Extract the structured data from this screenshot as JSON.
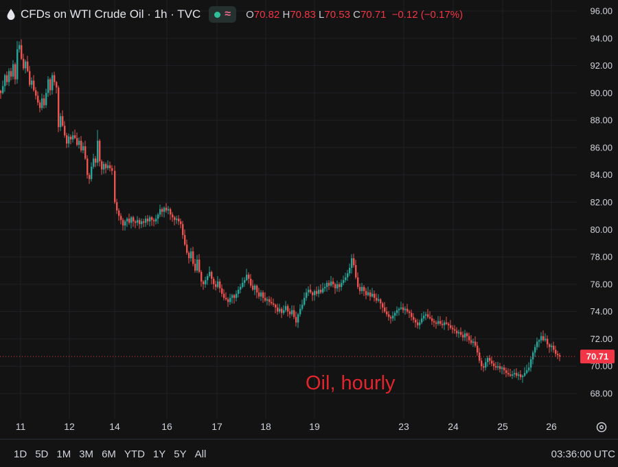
{
  "legend": {
    "symbol_title": "CFDs on WTI Crude Oil · 1h · TVC",
    "open_key": "O",
    "open_value": "70.82",
    "high_key": "H",
    "high_value": "70.83",
    "low_key": "L",
    "low_value": "70.53",
    "close_key": "C",
    "close_value": "70.71",
    "change": "−0.12 (−0.17%)"
  },
  "annotation": "Oil, hourly",
  "price_scale": {
    "ticks": [
      "96.00",
      "94.00",
      "92.00",
      "90.00",
      "88.00",
      "86.00",
      "84.00",
      "82.00",
      "80.00",
      "78.00",
      "76.00",
      "74.00",
      "72.00",
      "70.00",
      "68.00"
    ],
    "last_price_label": "70.71"
  },
  "time_scale": {
    "labels": [
      "11",
      "12",
      "14",
      "16",
      "17",
      "18",
      "19",
      "23",
      "24",
      "25",
      "26"
    ]
  },
  "range_buttons": [
    "1D",
    "5D",
    "1M",
    "3M",
    "6M",
    "YTD",
    "1Y",
    "5Y",
    "All"
  ],
  "clock": "03:36:00 UTC",
  "colors": {
    "background": "#131313",
    "up": "#26a69a",
    "down": "#ef5350",
    "annotation": "#e0262c",
    "last_price": "#f23645"
  },
  "icons": {
    "symbol": "drop-icon",
    "status": "status-dot",
    "indicator": "wave-icon",
    "settings": "gear-icon"
  },
  "chart_data": {
    "type": "candlestick",
    "title": "CFDs on WTI Crude Oil · 1h · TVC",
    "interval": "1h",
    "y_range": [
      66.8,
      96.7
    ],
    "y_ticks": [
      96,
      94,
      92,
      90,
      88,
      86,
      84,
      82,
      80,
      78,
      76,
      74,
      72,
      70,
      68
    ],
    "x_labels": [
      "11",
      "12",
      "14",
      "16",
      "17",
      "18",
      "19",
      "23",
      "24",
      "25",
      "26"
    ],
    "last_price": 70.71,
    "grid": true,
    "close_path": [
      [
        0,
        90.0
      ],
      [
        3,
        90.5
      ],
      [
        6,
        91.3
      ],
      [
        9,
        90.8
      ],
      [
        12,
        91.6
      ],
      [
        15,
        91.2
      ],
      [
        18,
        92.1
      ],
      [
        21,
        91.0
      ],
      [
        24,
        93.2
      ],
      [
        27,
        93.5
      ],
      [
        30,
        92.5
      ],
      [
        33,
        91.8
      ],
      [
        36,
        92.3
      ],
      [
        39,
        91.6
      ],
      [
        42,
        90.6
      ],
      [
        45,
        90.9
      ],
      [
        48,
        90.2
      ],
      [
        51,
        89.8
      ],
      [
        54,
        89.3
      ],
      [
        57,
        88.9
      ],
      [
        60,
        89.6
      ],
      [
        63,
        89.1
      ],
      [
        66,
        90.0
      ],
      [
        69,
        91.0
      ],
      [
        72,
        90.2
      ],
      [
        75,
        91.3
      ],
      [
        78,
        90.8
      ],
      [
        81,
        90.4
      ],
      [
        84,
        87.5
      ],
      [
        87,
        88.3
      ],
      [
        90,
        87.6
      ],
      [
        93,
        86.9
      ],
      [
        96,
        86.3
      ],
      [
        99,
        86.8
      ],
      [
        102,
        86.6
      ],
      [
        105,
        86.9
      ],
      [
        108,
        86.7
      ],
      [
        111,
        86.2
      ],
      [
        114,
        86.5
      ],
      [
        117,
        85.8
      ],
      [
        120,
        86.1
      ],
      [
        123,
        85.2
      ],
      [
        126,
        84.0
      ],
      [
        129,
        83.7
      ],
      [
        132,
        84.6
      ],
      [
        135,
        85.2
      ],
      [
        138,
        84.9
      ],
      [
        141,
        86.5
      ],
      [
        144,
        85.0
      ],
      [
        147,
        84.4
      ],
      [
        150,
        84.8
      ],
      [
        153,
        84.5
      ],
      [
        156,
        84.7
      ],
      [
        159,
        84.5
      ],
      [
        162,
        84.3
      ],
      [
        166,
        82.0
      ],
      [
        169,
        81.4
      ],
      [
        172,
        81.0
      ],
      [
        175,
        80.7
      ],
      [
        178,
        80.3
      ],
      [
        181,
        80.6
      ],
      [
        184,
        80.8
      ],
      [
        187,
        80.5
      ],
      [
        190,
        80.9
      ],
      [
        193,
        80.6
      ],
      [
        196,
        80.5
      ],
      [
        199,
        80.7
      ],
      [
        202,
        80.4
      ],
      [
        205,
        80.6
      ],
      [
        208,
        80.5
      ],
      [
        211,
        80.8
      ],
      [
        214,
        80.6
      ],
      [
        217,
        80.9
      ],
      [
        220,
        80.7
      ],
      [
        223,
        80.6
      ],
      [
        226,
        80.8
      ],
      [
        229,
        81.1
      ],
      [
        232,
        81.5
      ],
      [
        235,
        81.3
      ],
      [
        238,
        81.6
      ],
      [
        241,
        81.4
      ],
      [
        244,
        81.5
      ],
      [
        247,
        81.1
      ],
      [
        250,
        80.9
      ],
      [
        253,
        80.7
      ],
      [
        256,
        80.8
      ],
      [
        259,
        80.6
      ],
      [
        262,
        80.4
      ],
      [
        265,
        79.6
      ],
      [
        268,
        78.9
      ],
      [
        271,
        78.3
      ],
      [
        274,
        77.9
      ],
      [
        277,
        78.4
      ],
      [
        280,
        77.5
      ],
      [
        283,
        77.0
      ],
      [
        286,
        77.8
      ],
      [
        289,
        76.9
      ],
      [
        292,
        76.2
      ],
      [
        295,
        76.0
      ],
      [
        298,
        76.3
      ],
      [
        301,
        76.6
      ],
      [
        304,
        76.9
      ],
      [
        307,
        76.4
      ],
      [
        310,
        76.0
      ],
      [
        313,
        75.8
      ],
      [
        316,
        76.2
      ],
      [
        319,
        75.7
      ],
      [
        322,
        75.3
      ],
      [
        325,
        75.0
      ],
      [
        328,
        74.9
      ],
      [
        331,
        74.7
      ],
      [
        334,
        75.0
      ],
      [
        337,
        75.2
      ],
      [
        340,
        75.0
      ],
      [
        343,
        75.3
      ],
      [
        346,
        75.6
      ],
      [
        349,
        75.8
      ],
      [
        352,
        76.1
      ],
      [
        355,
        76.3
      ],
      [
        358,
        76.7
      ],
      [
        361,
        76.4
      ],
      [
        364,
        75.9
      ],
      [
        367,
        75.6
      ],
      [
        370,
        75.9
      ],
      [
        373,
        75.4
      ],
      [
        376,
        75.1
      ],
      [
        379,
        75.4
      ],
      [
        382,
        75.0
      ],
      [
        385,
        74.8
      ],
      [
        388,
        74.9
      ],
      [
        391,
        74.7
      ],
      [
        394,
        74.6
      ],
      [
        397,
        74.5
      ],
      [
        400,
        74.3
      ],
      [
        403,
        74.0
      ],
      [
        406,
        74.2
      ],
      [
        409,
        73.9
      ],
      [
        412,
        74.1
      ],
      [
        415,
        74.4
      ],
      [
        418,
        74.0
      ],
      [
        421,
        73.8
      ],
      [
        424,
        74.1
      ],
      [
        427,
        73.6
      ],
      [
        430,
        73.2
      ],
      [
        433,
        73.8
      ],
      [
        436,
        74.2
      ],
      [
        439,
        74.5
      ],
      [
        442,
        75.0
      ],
      [
        445,
        75.4
      ],
      [
        448,
        75.6
      ],
      [
        451,
        75.4
      ],
      [
        454,
        75.2
      ],
      [
        457,
        75.5
      ],
      [
        460,
        75.3
      ],
      [
        463,
        75.6
      ],
      [
        466,
        75.4
      ],
      [
        469,
        75.7
      ],
      [
        472,
        75.8
      ],
      [
        475,
        76.1
      ],
      [
        478,
        75.9
      ],
      [
        481,
        76.2
      ],
      [
        484,
        76.0
      ],
      [
        487,
        75.7
      ],
      [
        490,
        76.0
      ],
      [
        493,
        75.8
      ],
      [
        496,
        76.1
      ],
      [
        499,
        76.3
      ],
      [
        502,
        76.5
      ],
      [
        505,
        76.8
      ],
      [
        508,
        77.2
      ],
      [
        511,
        77.9
      ],
      [
        514,
        77.4
      ],
      [
        517,
        76.5
      ],
      [
        520,
        75.8
      ],
      [
        523,
        75.5
      ],
      [
        526,
        75.8
      ],
      [
        529,
        75.5
      ],
      [
        532,
        75.2
      ],
      [
        535,
        75.4
      ],
      [
        538,
        75.1
      ],
      [
        541,
        75.3
      ],
      [
        544,
        75.0
      ],
      [
        547,
        74.8
      ],
      [
        550,
        74.9
      ],
      [
        553,
        74.6
      ],
      [
        556,
        74.3
      ],
      [
        559,
        74.0
      ],
      [
        562,
        73.8
      ],
      [
        565,
        73.6
      ],
      [
        568,
        73.5
      ],
      [
        571,
        73.7
      ],
      [
        574,
        73.9
      ],
      [
        577,
        74.1
      ],
      [
        580,
        74.2
      ],
      [
        583,
        74.3
      ],
      [
        586,
        74.1
      ],
      [
        589,
        74.2
      ],
      [
        592,
        74.0
      ],
      [
        595,
        73.9
      ],
      [
        598,
        73.6
      ],
      [
        601,
        73.4
      ],
      [
        604,
        73.2
      ],
      [
        607,
        73.0
      ],
      [
        610,
        73.2
      ],
      [
        613,
        73.5
      ],
      [
        616,
        73.7
      ],
      [
        619,
        73.8
      ],
      [
        622,
        73.6
      ],
      [
        625,
        73.5
      ],
      [
        628,
        73.3
      ],
      [
        631,
        73.2
      ],
      [
        634,
        73.1
      ],
      [
        637,
        73.3
      ],
      [
        640,
        73.1
      ],
      [
        643,
        73.0
      ],
      [
        646,
        73.2
      ],
      [
        649,
        73.1
      ],
      [
        652,
        73.0
      ],
      [
        655,
        72.8
      ],
      [
        658,
        72.7
      ],
      [
        661,
        72.6
      ],
      [
        664,
        72.4
      ],
      [
        667,
        72.5
      ],
      [
        670,
        72.3
      ],
      [
        673,
        72.1
      ],
      [
        676,
        72.4
      ],
      [
        679,
        72.2
      ],
      [
        682,
        71.9
      ],
      [
        685,
        71.7
      ],
      [
        688,
        71.8
      ],
      [
        691,
        71.5
      ],
      [
        694,
        71.0
      ],
      [
        697,
        70.4
      ],
      [
        700,
        70.0
      ],
      [
        703,
        69.9
      ],
      [
        706,
        70.3
      ],
      [
        709,
        70.6
      ],
      [
        712,
        70.4
      ],
      [
        715,
        70.2
      ],
      [
        718,
        70.0
      ],
      [
        721,
        69.9
      ],
      [
        724,
        70.0
      ],
      [
        727,
        69.8
      ],
      [
        730,
        69.9
      ],
      [
        733,
        69.7
      ],
      [
        736,
        69.5
      ],
      [
        739,
        69.4
      ],
      [
        742,
        69.3
      ],
      [
        745,
        69.4
      ],
      [
        748,
        69.5
      ],
      [
        751,
        69.3
      ],
      [
        754,
        69.4
      ],
      [
        757,
        69.2
      ],
      [
        760,
        69.3
      ],
      [
        763,
        69.5
      ],
      [
        766,
        69.7
      ],
      [
        769,
        69.9
      ],
      [
        772,
        70.5
      ],
      [
        775,
        71.0
      ],
      [
        778,
        71.4
      ],
      [
        781,
        71.8
      ],
      [
        784,
        71.9
      ],
      [
        787,
        72.2
      ],
      [
        790,
        71.9
      ],
      [
        793,
        72.0
      ],
      [
        796,
        71.6
      ],
      [
        799,
        71.4
      ],
      [
        802,
        71.5
      ],
      [
        805,
        71.2
      ],
      [
        808,
        70.9
      ],
      [
        811,
        70.8
      ],
      [
        814,
        70.71
      ]
    ],
    "notable_wicks": [
      [
        141,
        87.3
      ],
      [
        357,
        79.3
      ],
      [
        430,
        72.9
      ],
      [
        511,
        78.2
      ],
      [
        24,
        93.8
      ],
      [
        166,
        82.5
      ],
      [
        790,
        72.5
      ]
    ]
  }
}
